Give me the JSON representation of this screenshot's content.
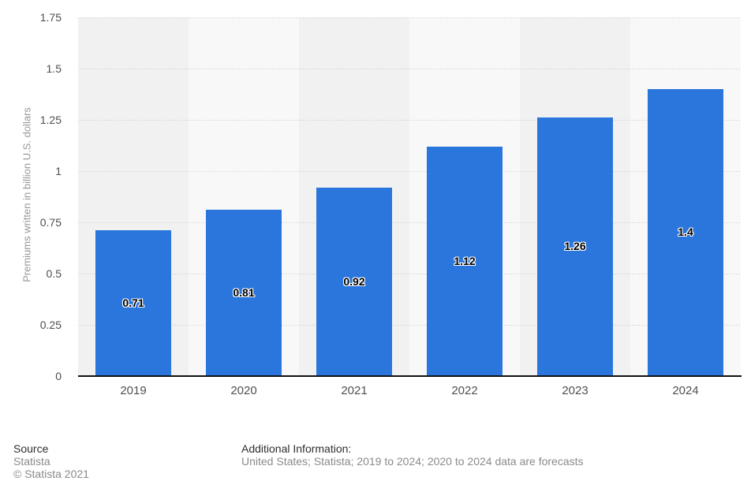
{
  "chart_data": {
    "type": "bar",
    "categories": [
      "2019",
      "2020",
      "2021",
      "2022",
      "2023",
      "2024"
    ],
    "values": [
      0.71,
      0.81,
      0.92,
      1.12,
      1.26,
      1.4
    ],
    "value_labels": [
      "0.71",
      "0.81",
      "0.92",
      "1.12",
      "1.26",
      "1.4"
    ],
    "title": "",
    "xlabel": "",
    "ylabel": "Premiums written in billion U.S. dollars",
    "ylim": [
      0,
      1.75
    ],
    "y_tick_values": [
      0,
      0.25,
      0.5,
      0.75,
      1,
      1.25,
      1.5,
      1.75
    ],
    "y_tick_labels": [
      "0",
      "0.25",
      "0.5",
      "0.75",
      "1",
      "1.25",
      "1.5",
      "1.75"
    ],
    "grid": "horizontal-dotted",
    "legend": "none",
    "bar_color": "#2a76dd",
    "band_colors": [
      "#f1f1f1",
      "#f8f8f8"
    ],
    "gridline_color": "#c9c9c9",
    "axis_line_color": "#111111"
  },
  "footer": {
    "source_label": "Source",
    "source_name": "Statista",
    "copyright": "© Statista 2021",
    "additional_info_label": "Additional Information:",
    "additional_info": "United States; Statista; 2019 to 2024; 2020 to 2024 data are forecasts"
  }
}
